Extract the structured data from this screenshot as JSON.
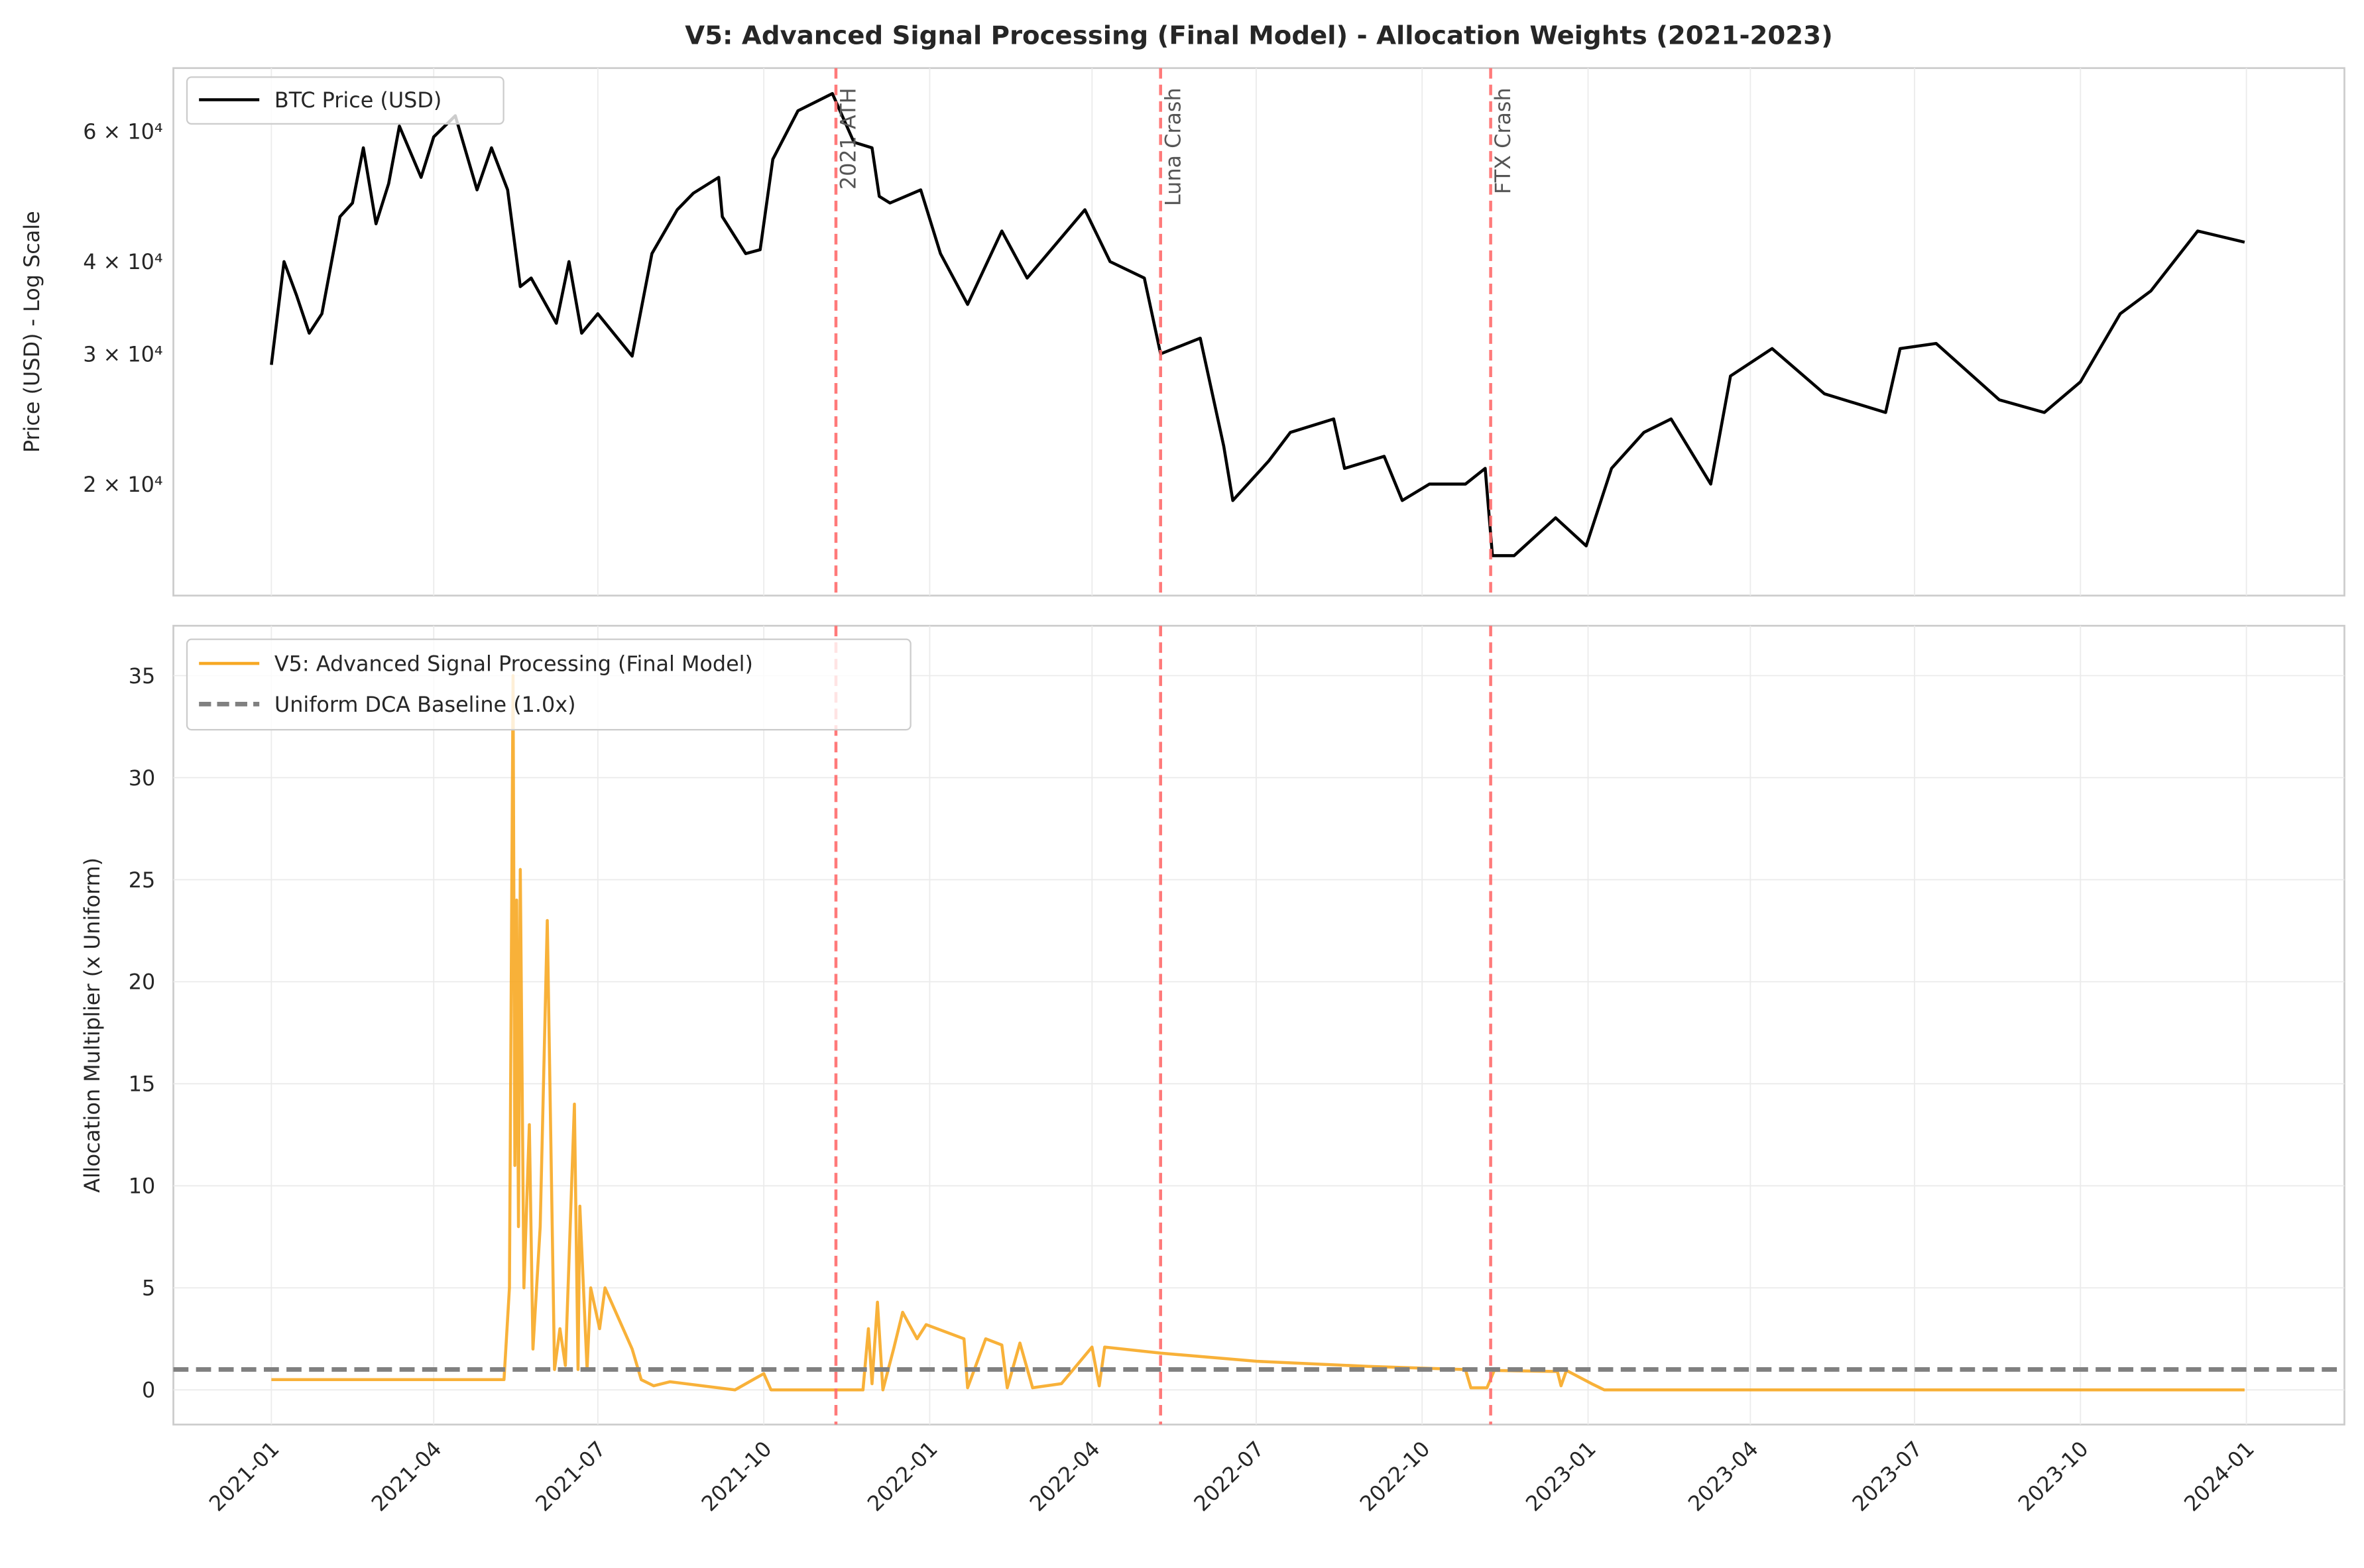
{
  "chart_data": [
    {
      "type": "line",
      "title": "V5: Advanced Signal Processing (Final Model) - Allocation Weights (2021-2023)",
      "ylabel": "Price (USD) - Log Scale",
      "yscale": "log",
      "ylim": [
        14100,
        73000
      ],
      "yticks": [
        {
          "value": 20000,
          "label": "2 × 10⁴"
        },
        {
          "value": 30000,
          "label": "3 × 10⁴"
        },
        {
          "value": 40000,
          "label": "4 × 10⁴"
        },
        {
          "value": 60000,
          "label": "6 × 10⁴"
        }
      ],
      "legend_position": "top-left",
      "grid": true,
      "series": [
        {
          "name": "BTC Price (USD)",
          "color": "#000000",
          "points": [
            [
              "2021-01-01",
              29000
            ],
            [
              "2021-01-08",
              40000
            ],
            [
              "2021-01-15",
              36000
            ],
            [
              "2021-01-22",
              32000
            ],
            [
              "2021-01-29",
              34000
            ],
            [
              "2021-02-08",
              46000
            ],
            [
              "2021-02-15",
              48000
            ],
            [
              "2021-02-21",
              57000
            ],
            [
              "2021-02-28",
              45000
            ],
            [
              "2021-03-07",
              51000
            ],
            [
              "2021-03-13",
              61000
            ],
            [
              "2021-03-25",
              52000
            ],
            [
              "2021-04-01",
              59000
            ],
            [
              "2021-04-13",
              63000
            ],
            [
              "2021-04-25",
              50000
            ],
            [
              "2021-05-03",
              57000
            ],
            [
              "2021-05-12",
              50000
            ],
            [
              "2021-05-19",
              37000
            ],
            [
              "2021-05-25",
              38000
            ],
            [
              "2021-06-08",
              33000
            ],
            [
              "2021-06-15",
              40000
            ],
            [
              "2021-06-22",
              32000
            ],
            [
              "2021-07-01",
              34000
            ],
            [
              "2021-07-20",
              29800
            ],
            [
              "2021-07-31",
              41000
            ],
            [
              "2021-08-14",
              47000
            ],
            [
              "2021-08-23",
              49500
            ],
            [
              "2021-09-06",
              52000
            ],
            [
              "2021-09-08",
              46000
            ],
            [
              "2021-09-21",
              41000
            ],
            [
              "2021-09-29",
              41500
            ],
            [
              "2021-10-06",
              55000
            ],
            [
              "2021-10-20",
              64000
            ],
            [
              "2021-11-08",
              67500
            ],
            [
              "2021-11-20",
              58000
            ],
            [
              "2021-11-30",
              57000
            ],
            [
              "2021-12-04",
              49000
            ],
            [
              "2021-12-10",
              48000
            ],
            [
              "2021-12-27",
              50000
            ],
            [
              "2022-01-07",
              41000
            ],
            [
              "2022-01-22",
              35000
            ],
            [
              "2022-02-10",
              44000
            ],
            [
              "2022-02-24",
              38000
            ],
            [
              "2022-03-28",
              47000
            ],
            [
              "2022-04-11",
              40000
            ],
            [
              "2022-04-30",
              38000
            ],
            [
              "2022-05-09",
              30000
            ],
            [
              "2022-05-31",
              31500
            ],
            [
              "2022-06-13",
              22500
            ],
            [
              "2022-06-18",
              19000
            ],
            [
              "2022-07-08",
              21500
            ],
            [
              "2022-07-20",
              23500
            ],
            [
              "2022-08-13",
              24500
            ],
            [
              "2022-08-19",
              21000
            ],
            [
              "2022-09-10",
              21800
            ],
            [
              "2022-09-20",
              19000
            ],
            [
              "2022-10-05",
              20000
            ],
            [
              "2022-10-25",
              20000
            ],
            [
              "2022-11-05",
              21000
            ],
            [
              "2022-11-09",
              16000
            ],
            [
              "2022-11-21",
              16000
            ],
            [
              "2022-12-14",
              18000
            ],
            [
              "2022-12-31",
              16500
            ],
            [
              "2023-01-14",
              21000
            ],
            [
              "2023-02-01",
              23500
            ],
            [
              "2023-02-16",
              24500
            ],
            [
              "2023-03-10",
              20000
            ],
            [
              "2023-03-21",
              28000
            ],
            [
              "2023-04-13",
              30500
            ],
            [
              "2023-05-12",
              26500
            ],
            [
              "2023-06-15",
              25000
            ],
            [
              "2023-06-23",
              30500
            ],
            [
              "2023-07-13",
              31000
            ],
            [
              "2023-08-17",
              26000
            ],
            [
              "2023-09-11",
              25000
            ],
            [
              "2023-10-01",
              27500
            ],
            [
              "2023-10-23",
              34000
            ],
            [
              "2023-11-09",
              36500
            ],
            [
              "2023-12-05",
              44000
            ],
            [
              "2023-12-31",
              42500
            ]
          ]
        }
      ],
      "annotations": [
        {
          "date": "2021-11-10",
          "label": "2021 ATH",
          "color": "#ff6b6b"
        },
        {
          "date": "2022-05-09",
          "label": "Luna Crash",
          "color": "#ff6b6b"
        },
        {
          "date": "2022-11-08",
          "label": "FTX Crash",
          "color": "#ff6b6b"
        }
      ]
    },
    {
      "type": "line",
      "ylabel": "Allocation Multiplier (x Uniform)",
      "ylim": [
        -1.7,
        37.4
      ],
      "yticks": [
        0,
        5,
        10,
        15,
        20,
        25,
        30,
        35
      ],
      "xlim": [
        "2020-10-28",
        "2024-02-10"
      ],
      "xticks": [
        "2021-01",
        "2021-04",
        "2021-07",
        "2021-10",
        "2022-01",
        "2022-04",
        "2022-07",
        "2022-10",
        "2023-01",
        "2023-04",
        "2023-07",
        "2023-10",
        "2024-01"
      ],
      "legend_position": "top-left",
      "grid": true,
      "series": [
        {
          "name": "V5: Advanced Signal Processing (Final Model)",
          "color": "#f7a823",
          "points": [
            [
              "2021-01-01",
              0.5
            ],
            [
              "2021-05-10",
              0.5
            ],
            [
              "2021-05-13",
              5
            ],
            [
              "2021-05-15",
              35
            ],
            [
              "2021-05-16",
              11
            ],
            [
              "2021-05-17",
              24
            ],
            [
              "2021-05-18",
              8
            ],
            [
              "2021-05-19",
              25.5
            ],
            [
              "2021-05-21",
              5
            ],
            [
              "2021-05-24",
              13
            ],
            [
              "2021-05-26",
              2
            ],
            [
              "2021-05-30",
              8
            ],
            [
              "2021-06-03",
              23
            ],
            [
              "2021-06-07",
              1
            ],
            [
              "2021-06-10",
              3
            ],
            [
              "2021-06-13",
              1.2
            ],
            [
              "2021-06-18",
              14
            ],
            [
              "2021-06-20",
              1
            ],
            [
              "2021-06-21",
              9
            ],
            [
              "2021-06-25",
              1
            ],
            [
              "2021-06-27",
              5
            ],
            [
              "2021-07-02",
              3
            ],
            [
              "2021-07-05",
              5
            ],
            [
              "2021-07-20",
              2
            ],
            [
              "2021-07-25",
              0.5
            ],
            [
              "2021-08-01",
              0.2
            ],
            [
              "2021-08-10",
              0.4
            ],
            [
              "2021-09-15",
              0
            ],
            [
              "2021-10-01",
              0.8
            ],
            [
              "2021-10-05",
              0
            ],
            [
              "2021-11-25",
              0
            ],
            [
              "2021-11-28",
              3
            ],
            [
              "2021-11-30",
              0.3
            ],
            [
              "2021-12-03",
              4.3
            ],
            [
              "2021-12-06",
              0
            ],
            [
              "2021-12-12",
              2
            ],
            [
              "2021-12-17",
              3.8
            ],
            [
              "2021-12-25",
              2.5
            ],
            [
              "2021-12-30",
              3.2
            ],
            [
              "2022-01-20",
              2.5
            ],
            [
              "2022-01-22",
              0.1
            ],
            [
              "2022-02-01",
              2.5
            ],
            [
              "2022-02-10",
              2.2
            ],
            [
              "2022-02-13",
              0.1
            ],
            [
              "2022-02-20",
              2.3
            ],
            [
              "2022-02-27",
              0.1
            ],
            [
              "2022-03-15",
              0.3
            ],
            [
              "2022-04-01",
              2.1
            ],
            [
              "2022-04-05",
              0.2
            ],
            [
              "2022-04-08",
              2.1
            ],
            [
              "2022-05-09",
              1.8
            ],
            [
              "2022-07-01",
              1.4
            ],
            [
              "2022-09-01",
              1.15
            ],
            [
              "2022-10-25",
              1.0
            ],
            [
              "2022-10-28",
              0.1
            ],
            [
              "2022-11-06",
              0.1
            ],
            [
              "2022-11-10",
              0.95
            ],
            [
              "2022-12-15",
              0.9
            ],
            [
              "2022-12-17",
              0.2
            ],
            [
              "2022-12-20",
              0.95
            ],
            [
              "2023-01-03",
              0.3
            ],
            [
              "2023-01-10",
              0
            ],
            [
              "2023-12-31",
              0
            ]
          ]
        },
        {
          "name": "Uniform DCA Baseline (1.0x)",
          "color": "#808080",
          "constant": 1.0
        }
      ]
    }
  ]
}
